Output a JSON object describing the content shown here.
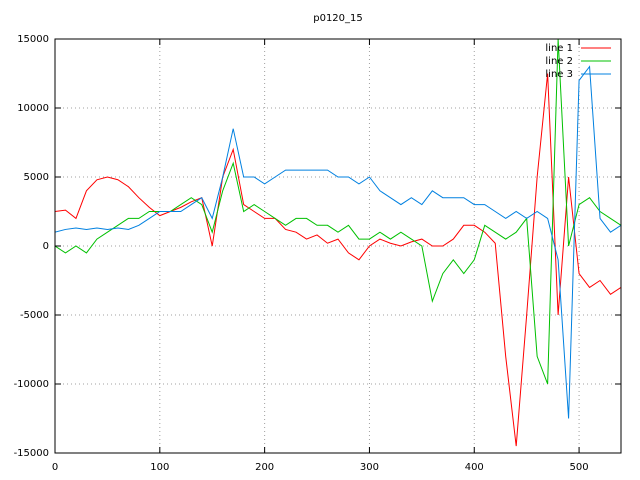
{
  "chart_data": {
    "type": "line",
    "title": "p0120_15",
    "x": [
      0,
      10,
      20,
      30,
      40,
      50,
      60,
      70,
      80,
      90,
      100,
      110,
      120,
      130,
      140,
      150,
      160,
      170,
      180,
      190,
      200,
      210,
      220,
      230,
      240,
      250,
      260,
      270,
      280,
      290,
      300,
      310,
      320,
      330,
      340,
      350,
      360,
      370,
      380,
      390,
      400,
      410,
      420,
      430,
      440,
      450,
      460,
      470,
      480,
      490,
      500,
      510,
      520,
      530,
      540
    ],
    "series": [
      {
        "name": "line 1",
        "color": "#ff0000",
        "values": [
          2500,
          2600,
          2000,
          4000,
          4800,
          5000,
          4800,
          4300,
          3500,
          2800,
          2200,
          2500,
          2800,
          3200,
          3500,
          0,
          5000,
          7000,
          3000,
          2500,
          2000,
          2000,
          1200,
          1000,
          500,
          800,
          200,
          500,
          -500,
          -1000,
          0,
          500,
          200,
          0,
          300,
          500,
          0,
          0,
          500,
          1500,
          1500,
          1000,
          200,
          -8000,
          -14500,
          -5000,
          5000,
          12500,
          -5000,
          5000,
          -2000,
          -3000,
          -2500,
          -3500,
          -3000
        ]
      },
      {
        "name": "line 2",
        "color": "#00c000",
        "values": [
          0,
          -500,
          0,
          -500,
          500,
          1000,
          1500,
          2000,
          2000,
          2500,
          2500,
          2500,
          3000,
          3500,
          3000,
          1000,
          4000,
          6000,
          2500,
          3000,
          2500,
          2000,
          1500,
          2000,
          2000,
          1500,
          1500,
          1000,
          1500,
          500,
          500,
          1000,
          500,
          1000,
          500,
          0,
          -4000,
          -2000,
          -1000,
          -2000,
          -1000,
          1500,
          1000,
          500,
          1000,
          2000,
          -8000,
          -10000,
          15000,
          0,
          3000,
          3500,
          2500,
          2000,
          1500
        ]
      },
      {
        "name": "line 3",
        "color": "#0080e0",
        "values": [
          1000,
          1200,
          1300,
          1200,
          1300,
          1200,
          1300,
          1200,
          1500,
          2000,
          2500,
          2500,
          2500,
          3000,
          3500,
          2000,
          5000,
          8500,
          5000,
          5000,
          4500,
          5000,
          5500,
          5500,
          5500,
          5500,
          5500,
          5000,
          5000,
          4500,
          5000,
          4000,
          3500,
          3000,
          3500,
          3000,
          4000,
          3500,
          3500,
          3500,
          3000,
          3000,
          2500,
          2000,
          2500,
          2000,
          2500,
          2000,
          -1000,
          -12500,
          12000,
          13000,
          2000,
          1000,
          1500
        ]
      }
    ],
    "xlim": [
      0,
      540
    ],
    "ylim": [
      -15000,
      15000
    ],
    "xticks": [
      0,
      100,
      200,
      300,
      400,
      500
    ],
    "yticks": [
      -15000,
      -10000,
      -5000,
      0,
      5000,
      10000,
      15000
    ],
    "grid": true,
    "legend": "top-right"
  }
}
